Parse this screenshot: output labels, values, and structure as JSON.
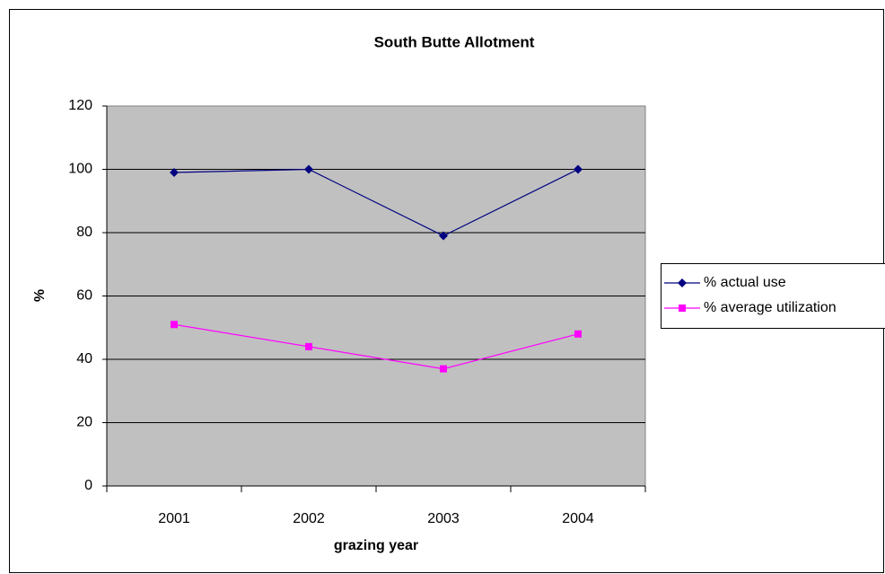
{
  "chart_data": {
    "type": "line",
    "title": "South Butte Allotment",
    "x_label": "grazing year",
    "y_label": "%",
    "categories": [
      "2001",
      "2002",
      "2003",
      "2004"
    ],
    "series": [
      {
        "name": "% actual use",
        "color": "#000080",
        "marker": "diamond",
        "values": [
          99,
          100,
          79,
          100
        ]
      },
      {
        "name": "% average utilization",
        "color": "#ff00ff",
        "marker": "square",
        "values": [
          51,
          44,
          37,
          48
        ]
      }
    ],
    "ylim": [
      0,
      120
    ],
    "yticks": [
      0,
      20,
      40,
      60,
      80,
      100,
      120
    ],
    "grid": true,
    "legend": "right"
  }
}
